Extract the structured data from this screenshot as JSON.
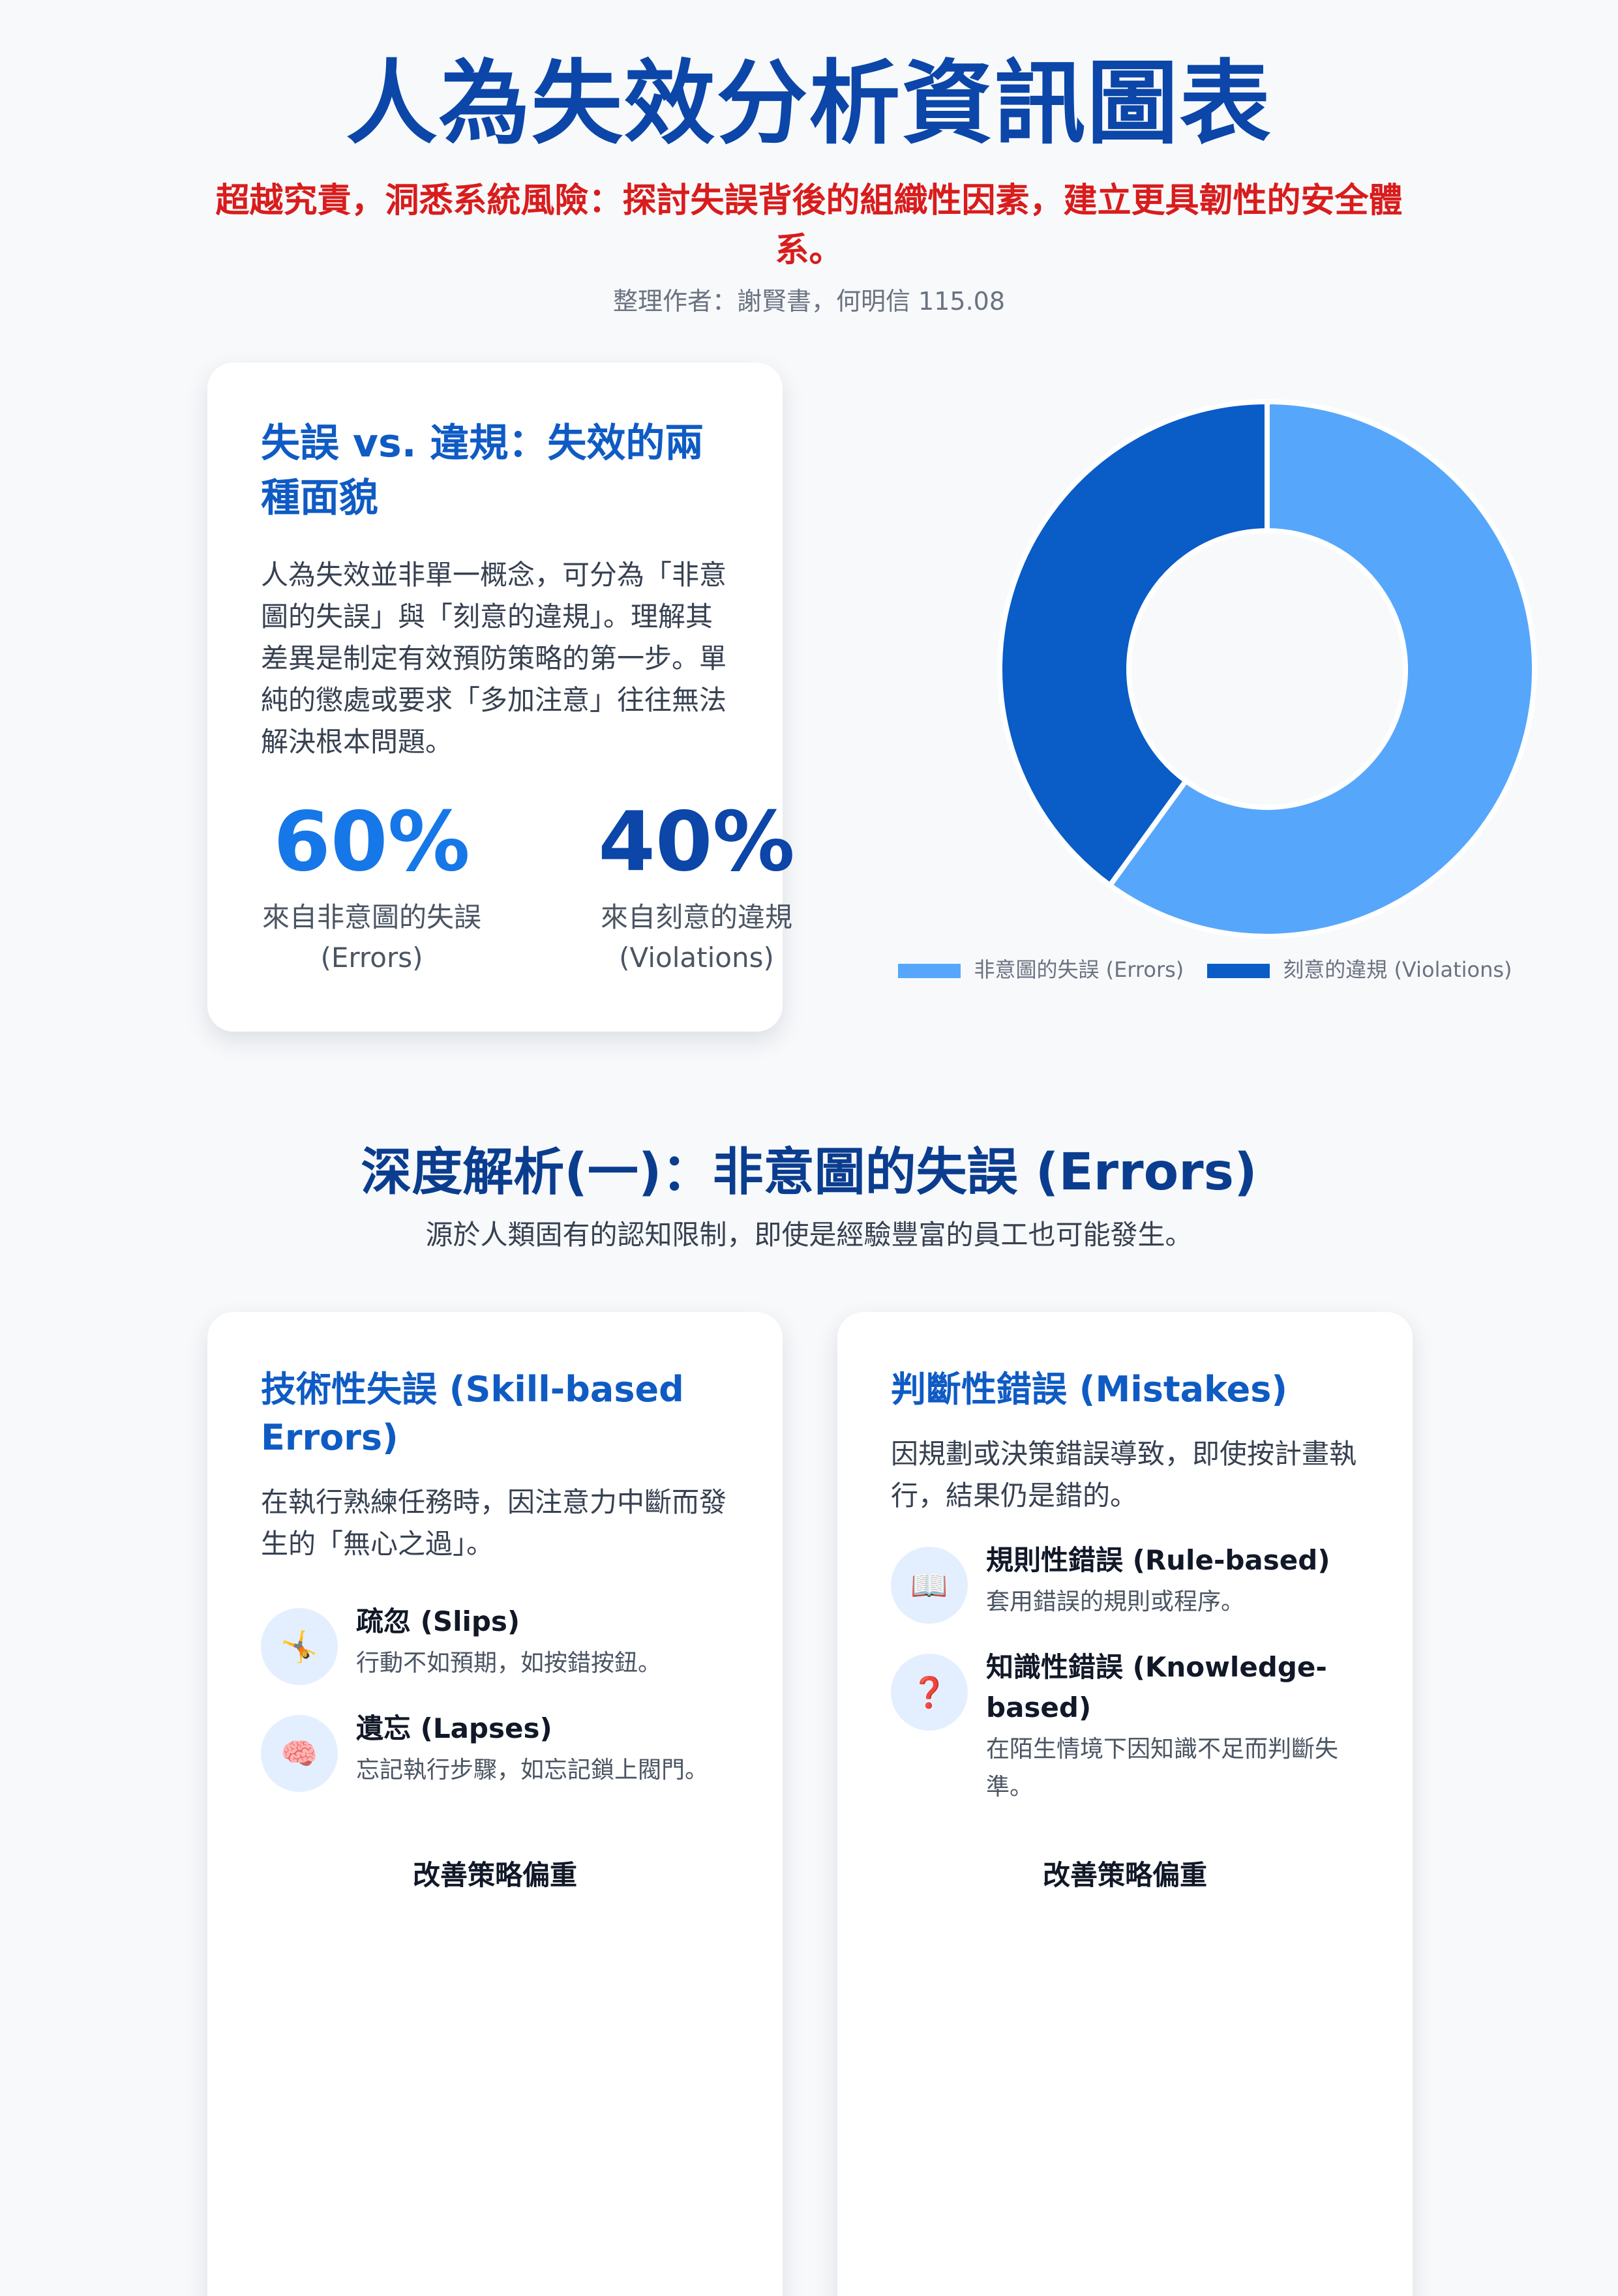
{
  "header": {
    "title": "人為失效分析資訊圖表",
    "subtitle": "超越究責，洞悉系統風險：探討失誤背後的組織性因素，建立更具韌性的安全體系。",
    "author": "整理作者：謝賢書，何明信 115.08"
  },
  "overview": {
    "title": "失誤 vs. 違規：失效的兩種面貌",
    "body": "人為失效並非單一概念，可分為「非意圖的失誤」與「刻意的違規」。理解其差異是制定有效預防策略的第一步。單純的懲處或要求「多加注意」往往無法解決根本問題。",
    "stats": [
      {
        "value": "60%",
        "label": "來自非意圖的失誤 (Errors)"
      },
      {
        "value": "40%",
        "label": "來自刻意的違規 (Violations)"
      }
    ]
  },
  "chart_data": {
    "type": "pie",
    "categories": [
      "非意圖的失誤 (Errors)",
      "刻意的違規 (Violations)"
    ],
    "values": [
      60,
      40
    ],
    "colors": [
      "#56a7fb",
      "#0a5cc7"
    ],
    "legend": "bottom"
  },
  "section2": {
    "title": "深度解析(一)：非意圖的失誤 (Errors)",
    "subtitle": "源於人類固有的認知限制，即使是經驗豐富的員工也可能發生。",
    "cards": [
      {
        "title": "技術性失誤 (Skill-based Errors)",
        "body": "在執行熟練任務時，因注意力中斷而發生的「無心之過」。",
        "items": [
          {
            "icon": "tripping-person-icon",
            "glyph": "🤸",
            "title": "疏忽 (Slips)",
            "desc": "行動不如預期，如按錯按鈕。"
          },
          {
            "icon": "brain-icon",
            "glyph": "🧠",
            "title": "遺忘 (Lapses)",
            "desc": "忘記執行步驟，如忘記鎖上閥門。"
          }
        ],
        "strategy": "改善策略偏重"
      },
      {
        "title": "判斷性錯誤 (Mistakes)",
        "body": "因規劃或決策錯誤導致，即使按計畫執行，結果仍是錯的。",
        "items": [
          {
            "icon": "book-icon",
            "glyph": "📖",
            "title": "規則性錯誤 (Rule-based)",
            "desc": "套用錯誤的規則或程序。"
          },
          {
            "icon": "question-mark-icon",
            "glyph": "❓",
            "title": "知識性錯誤 (Knowledge-based)",
            "desc": "在陌生情境下因知識不足而判斷失準。"
          }
        ],
        "strategy": "改善策略偏重"
      }
    ]
  }
}
